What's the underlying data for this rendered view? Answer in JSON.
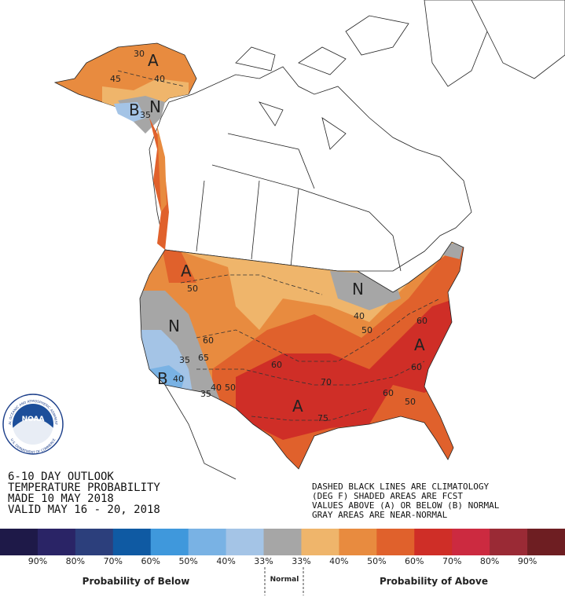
{
  "title_block": [
    "6-10 DAY OUTLOOK",
    "TEMPERATURE PROBABILITY",
    "MADE  10 MAY 2018",
    "VALID  MAY 16 - 20, 2018"
  ],
  "notes": [
    "DASHED BLACK LINES ARE CLIMATOLOGY",
    "(DEG F) SHADED AREAS ARE FCST",
    "VALUES ABOVE (A) OR BELOW (B) NORMAL",
    "GRAY AREAS ARE NEAR-NORMAL"
  ],
  "logo": {
    "name": "NOAA",
    "ring_top": "NATIONAL OCEANIC AND ATMOSPHERIC ADMINISTRATION",
    "ring_bottom": "U.S. DEPARTMENT OF COMMERCE"
  },
  "map": {
    "labels": [
      "A",
      "30",
      "45",
      "40",
      "B",
      "N",
      "35",
      "A",
      "50",
      "N",
      "60",
      "65",
      "B",
      "40",
      "35",
      "35",
      "40",
      "50",
      "60",
      "70",
      "A",
      "75",
      "N",
      "40",
      "50",
      "60",
      "A",
      "60",
      "60",
      "50"
    ]
  },
  "legend": {
    "colors": [
      "#1e1948",
      "#2a2466",
      "#2c3f7c",
      "#0f5aa3",
      "#3f98dc",
      "#79b2e4",
      "#a4c4e6",
      "#a6a6a6",
      "#efb56b",
      "#e88b3f",
      "#e0612c",
      "#cf2e27",
      "#cc2a40",
      "#9a2a35",
      "#6e1e22"
    ],
    "labels": [
      "90%",
      "80%",
      "70%",
      "60%",
      "50%",
      "40%",
      "33%",
      "33%",
      "40%",
      "50%",
      "60%",
      "70%",
      "80%",
      "90%"
    ],
    "below": "Probability of Below",
    "normal": "Normal",
    "above": "Probability of Above"
  }
}
